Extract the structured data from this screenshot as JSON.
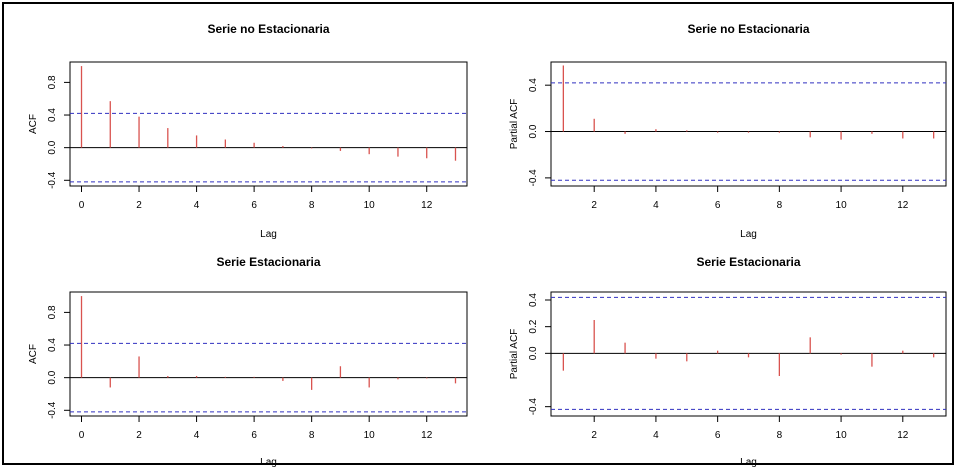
{
  "chart_data": [
    {
      "type": "bar",
      "title": "Serie no Estacionaria",
      "xlabel": "Lag",
      "ylabel": "ACF",
      "xlim": [
        -0.4,
        13.4
      ],
      "ylim": [
        -0.47,
        1.05
      ],
      "xticks": [
        0,
        2,
        4,
        6,
        8,
        10,
        12
      ],
      "yticks": [
        -0.4,
        0.0,
        0.4,
        0.8
      ],
      "ytick_labels": [
        "-0.4",
        "0.0",
        "0.4",
        "0.8"
      ],
      "x": [
        0,
        1,
        2,
        3,
        4,
        5,
        6,
        7,
        8,
        9,
        10,
        11,
        12,
        13
      ],
      "values": [
        1.0,
        0.57,
        0.38,
        0.24,
        0.15,
        0.1,
        0.06,
        0.02,
        -0.01,
        -0.04,
        -0.08,
        -0.11,
        -0.13,
        -0.16
      ],
      "conf_limit": 0.42,
      "bar_color": "#d9534f",
      "conf_color": "#3030c0",
      "grid": false
    },
    {
      "type": "bar",
      "title": "Serie no Estacionaria",
      "xlabel": "Lag",
      "ylabel": "Partial ACF",
      "xlim": [
        0.6,
        13.4
      ],
      "ylim": [
        -0.47,
        0.6
      ],
      "xticks": [
        2,
        4,
        6,
        8,
        10,
        12
      ],
      "yticks": [
        -0.4,
        0.0,
        0.4
      ],
      "ytick_labels": [
        "-0.4",
        "0.0",
        "0.4"
      ],
      "x": [
        1,
        2,
        3,
        4,
        5,
        6,
        7,
        8,
        9,
        10,
        11,
        12,
        13
      ],
      "values": [
        0.57,
        0.11,
        -0.02,
        0.02,
        0.01,
        -0.01,
        -0.01,
        -0.01,
        -0.05,
        -0.07,
        -0.02,
        -0.06,
        -0.06
      ],
      "conf_limit": 0.42,
      "bar_color": "#d9534f",
      "conf_color": "#3030c0",
      "grid": false
    },
    {
      "type": "bar",
      "title": "Serie Estacionaria",
      "xlabel": "Lag",
      "ylabel": "ACF",
      "xlim": [
        -0.4,
        13.4
      ],
      "ylim": [
        -0.47,
        1.05
      ],
      "xticks": [
        0,
        2,
        4,
        6,
        8,
        10,
        12
      ],
      "yticks": [
        -0.4,
        0.0,
        0.4,
        0.8
      ],
      "ytick_labels": [
        "-0.4",
        "0.0",
        "0.4",
        "0.8"
      ],
      "x": [
        0,
        1,
        2,
        3,
        4,
        5,
        6,
        7,
        8,
        9,
        10,
        11,
        12,
        13
      ],
      "values": [
        1.0,
        -0.12,
        0.26,
        0.02,
        0.02,
        0.01,
        0.01,
        -0.04,
        -0.15,
        0.14,
        -0.12,
        -0.02,
        -0.01,
        -0.07
      ],
      "conf_limit": 0.42,
      "bar_color": "#d9534f",
      "conf_color": "#3030c0",
      "grid": false
    },
    {
      "type": "bar",
      "title": "Serie  Estacionaria",
      "xlabel": "Lag",
      "ylabel": "Partial ACF",
      "xlim": [
        0.6,
        13.4
      ],
      "ylim": [
        -0.47,
        0.46
      ],
      "xticks": [
        2,
        4,
        6,
        8,
        10,
        12
      ],
      "yticks": [
        -0.4,
        0.0,
        0.2,
        0.4
      ],
      "ytick_labels": [
        "-0.4",
        "0.0",
        "0.2",
        "0.4"
      ],
      "x": [
        1,
        2,
        3,
        4,
        5,
        6,
        7,
        8,
        9,
        10,
        11,
        12,
        13
      ],
      "values": [
        -0.13,
        0.25,
        0.08,
        -0.04,
        -0.06,
        0.02,
        -0.03,
        -0.17,
        0.12,
        -0.01,
        -0.1,
        0.02,
        -0.03
      ],
      "conf_limit": 0.42,
      "bar_color": "#d9534f",
      "conf_color": "#3030c0",
      "grid": false
    }
  ]
}
